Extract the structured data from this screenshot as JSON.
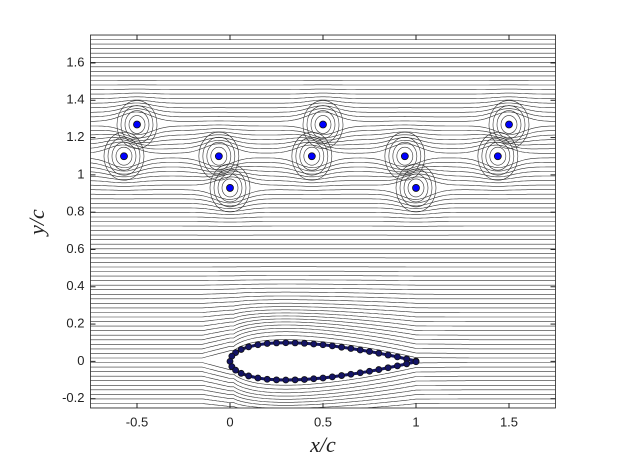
{
  "chart_data": {
    "type": "scatter",
    "xlabel": "x/c",
    "ylabel": "y/c",
    "xlim": [
      -0.75,
      1.75
    ],
    "xticks": [
      -0.5,
      0,
      0.5,
      1,
      1.5
    ],
    "ylim": [
      -0.25,
      1.75
    ],
    "yticks": [
      -0.2,
      0,
      0.2,
      0.4,
      0.6,
      0.8,
      1,
      1.2,
      1.4,
      1.6
    ],
    "series": [
      {
        "color": "#0000ff",
        "x": [
          -0.5,
          -0.57,
          -0.06,
          0,
          0.5,
          0.44,
          0.94,
          1.0,
          1.5,
          1.44
        ],
        "y": [
          1.27,
          1.1,
          1.1,
          0.93,
          1.27,
          1.1,
          1.1,
          0.93,
          1.27,
          1.1
        ]
      },
      {
        "color": "#141466",
        "x": [
          1,
          0.95,
          0.9,
          0.85,
          0.8,
          0.75,
          0.7,
          0.65,
          0.6,
          0.55,
          0.5,
          0.45,
          0.4,
          0.35,
          0.3,
          0.25,
          0.2,
          0.15,
          0.1,
          0.06,
          0.03,
          0.01,
          0,
          0.01,
          0.03,
          0.06,
          0.1,
          0.15,
          0.2,
          0.25,
          0.3,
          0.35,
          0.4,
          0.45,
          0.5,
          0.55,
          0.6,
          0.65,
          0.7,
          0.75,
          0.8,
          0.85,
          0.9,
          0.95,
          1
        ],
        "y": [
          0.002,
          0.013,
          0.024,
          0.034,
          0.044,
          0.053,
          0.061,
          0.069,
          0.076,
          0.083,
          0.089,
          0.093,
          0.097,
          0.099,
          0.1,
          0.099,
          0.096,
          0.089,
          0.078,
          0.064,
          0.047,
          0.028,
          0,
          -0.028,
          -0.047,
          -0.064,
          -0.078,
          -0.089,
          -0.096,
          -0.099,
          -0.1,
          -0.099,
          -0.097,
          -0.093,
          -0.089,
          -0.083,
          -0.076,
          -0.069,
          -0.061,
          -0.053,
          -0.044,
          -0.034,
          -0.024,
          -0.013,
          -0.002
        ]
      }
    ]
  }
}
